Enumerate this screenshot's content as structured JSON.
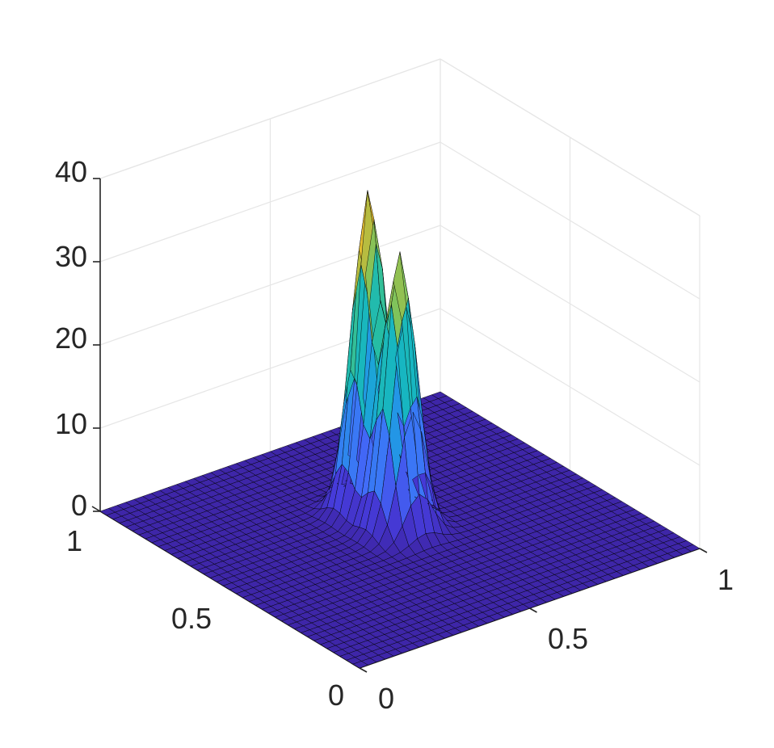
{
  "chart_data": {
    "type": "surface",
    "title": "",
    "xlabel": "",
    "ylabel": "",
    "zlabel": "",
    "xlim": [
      0,
      1
    ],
    "ylim": [
      0,
      1
    ],
    "zlim": [
      0,
      40
    ],
    "x_ticks": [
      "0",
      "0.5",
      "1"
    ],
    "y_ticks": [
      "0",
      "0.5",
      "1"
    ],
    "z_ticks": [
      "0",
      "10",
      "20",
      "30",
      "40"
    ],
    "grid": true,
    "colormap": "parula",
    "colors": {
      "axis": "#262626",
      "grid": "#e6e6e6",
      "mesh_edge": "#000000",
      "parula_low": "#3e26a8",
      "parula_high": "#f9fb0e"
    },
    "grid_points": 41,
    "peaks": [
      {
        "x": 0.5,
        "y": 0.62,
        "height": 38.5,
        "width": 0.04
      },
      {
        "x": 0.5,
        "y": 0.5,
        "height": 33.0,
        "width": 0.04
      }
    ]
  }
}
